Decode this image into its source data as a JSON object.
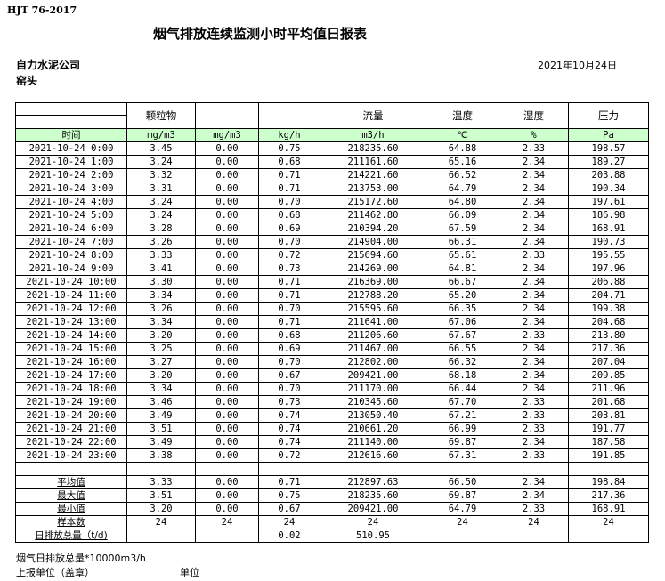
{
  "standard": "HJT  76-2017",
  "title": "烟气排放连续监测小时平均值日报表",
  "company": "自力水泥公司",
  "unit_name": "窑头",
  "date": "2021年10月24日",
  "header": {
    "columns": [
      "",
      "颗粒物",
      "",
      "",
      "流量",
      "温度",
      "湿度",
      "压力"
    ],
    "units": [
      "时间",
      "mg/m3",
      "mg/m3",
      "kg/h",
      "m3/h",
      "℃",
      "%",
      "Pa"
    ]
  },
  "unit_row_color": "#ccffcc",
  "rows": [
    [
      "2021-10-24 0:00",
      "3.45",
      "0.00",
      "0.75",
      "218235.60",
      "64.88",
      "2.33",
      "198.57"
    ],
    [
      "2021-10-24 1:00",
      "3.24",
      "0.00",
      "0.68",
      "211161.60",
      "65.16",
      "2.34",
      "189.27"
    ],
    [
      "2021-10-24 2:00",
      "3.32",
      "0.00",
      "0.71",
      "214221.60",
      "66.52",
      "2.34",
      "203.88"
    ],
    [
      "2021-10-24 3:00",
      "3.31",
      "0.00",
      "0.71",
      "213753.00",
      "64.79",
      "2.34",
      "190.34"
    ],
    [
      "2021-10-24 4:00",
      "3.24",
      "0.00",
      "0.70",
      "215172.60",
      "64.80",
      "2.34",
      "197.61"
    ],
    [
      "2021-10-24 5:00",
      "3.24",
      "0.00",
      "0.68",
      "211462.80",
      "66.09",
      "2.34",
      "186.98"
    ],
    [
      "2021-10-24 6:00",
      "3.28",
      "0.00",
      "0.69",
      "210394.20",
      "67.59",
      "2.34",
      "168.91"
    ],
    [
      "2021-10-24 7:00",
      "3.26",
      "0.00",
      "0.70",
      "214904.00",
      "66.31",
      "2.34",
      "190.73"
    ],
    [
      "2021-10-24 8:00",
      "3.33",
      "0.00",
      "0.72",
      "215694.60",
      "65.61",
      "2.33",
      "195.55"
    ],
    [
      "2021-10-24 9:00",
      "3.41",
      "0.00",
      "0.73",
      "214269.00",
      "64.81",
      "2.34",
      "197.96"
    ],
    [
      "2021-10-24 10:00",
      "3.30",
      "0.00",
      "0.71",
      "216369.00",
      "66.67",
      "2.34",
      "206.88"
    ],
    [
      "2021-10-24 11:00",
      "3.34",
      "0.00",
      "0.71",
      "212788.20",
      "65.20",
      "2.34",
      "204.71"
    ],
    [
      "2021-10-24 12:00",
      "3.26",
      "0.00",
      "0.70",
      "215595.60",
      "66.35",
      "2.34",
      "199.38"
    ],
    [
      "2021-10-24 13:00",
      "3.34",
      "0.00",
      "0.71",
      "211641.00",
      "67.06",
      "2.34",
      "204.68"
    ],
    [
      "2021-10-24 14:00",
      "3.20",
      "0.00",
      "0.68",
      "211206.60",
      "67.67",
      "2.33",
      "213.80"
    ],
    [
      "2021-10-24 15:00",
      "3.25",
      "0.00",
      "0.69",
      "211467.00",
      "66.55",
      "2.34",
      "217.36"
    ],
    [
      "2021-10-24 16:00",
      "3.27",
      "0.00",
      "0.70",
      "212802.00",
      "66.32",
      "2.34",
      "207.04"
    ],
    [
      "2021-10-24 17:00",
      "3.20",
      "0.00",
      "0.67",
      "209421.00",
      "68.18",
      "2.34",
      "209.85"
    ],
    [
      "2021-10-24 18:00",
      "3.34",
      "0.00",
      "0.70",
      "211170.00",
      "66.44",
      "2.34",
      "211.96"
    ],
    [
      "2021-10-24 19:00",
      "3.46",
      "0.00",
      "0.73",
      "210345.60",
      "67.70",
      "2.33",
      "201.68"
    ],
    [
      "2021-10-24 20:00",
      "3.49",
      "0.00",
      "0.74",
      "213050.40",
      "67.21",
      "2.33",
      "203.81"
    ],
    [
      "2021-10-24 21:00",
      "3.51",
      "0.00",
      "0.74",
      "210661.20",
      "66.99",
      "2.33",
      "191.77"
    ],
    [
      "2021-10-24 22:00",
      "3.49",
      "0.00",
      "0.74",
      "211140.00",
      "69.87",
      "2.34",
      "187.58"
    ],
    [
      "2021-10-24 23:00",
      "3.38",
      "0.00",
      "0.72",
      "212616.60",
      "67.31",
      "2.33",
      "191.85"
    ]
  ],
  "summary": [
    [
      "平均值",
      "3.33",
      "0.00",
      "0.71",
      "212897.63",
      "66.50",
      "2.34",
      "198.84"
    ],
    [
      "最大值",
      "3.51",
      "0.00",
      "0.75",
      "218235.60",
      "69.87",
      "2.34",
      "217.36"
    ],
    [
      "最小值",
      "3.20",
      "0.00",
      "0.67",
      "209421.00",
      "64.79",
      "2.33",
      "168.91"
    ],
    [
      "样本数",
      "24",
      "24",
      "24",
      "24",
      "24",
      "24",
      "24"
    ],
    [
      "日排放总量（t/d)",
      "",
      "",
      "0.02",
      "510.95",
      "",
      "",
      ""
    ]
  ],
  "footer": {
    "note": "烟气日排放总量*10000m3/h",
    "report_unit": "上报单位（盖章）",
    "unit": "单位"
  }
}
